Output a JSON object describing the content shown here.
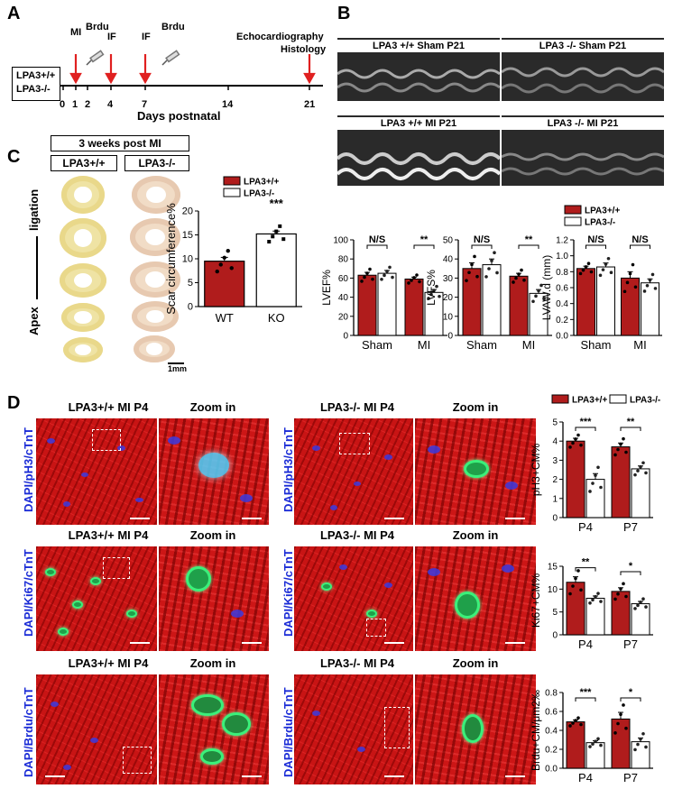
{
  "panels": {
    "a": {
      "label": "A",
      "genotype_lines": [
        "LPA3+/+",
        "LPA3-/-"
      ],
      "events": [
        "MI",
        "Brdu",
        "IF",
        "IF",
        "Brdu"
      ],
      "endpoint_lines": [
        "Echocardiography",
        "Histology"
      ],
      "ticks": [
        "0",
        "1",
        "2",
        "4",
        "7",
        "14",
        "21"
      ],
      "axis_label": "Days postnatal"
    },
    "b": {
      "label": "B",
      "echo_titles": [
        "LPA3 +/+  Sham  P21",
        "LPA3 -/-  Sham  P21",
        "LPA3 +/+  MI  P21",
        "LPA3 -/-  MI  P21"
      ]
    },
    "c": {
      "label": "C",
      "header": "3 weeks post MI",
      "col_wt": "LPA3+/+",
      "col_ko": "LPA3-/-",
      "side_top": "ligation",
      "side_bottom": "Apex",
      "scale": "1mm"
    },
    "d": {
      "label": "D",
      "rows": [
        {
          "wt_title": "LPA3+/+  MI  P4",
          "ko_title": "LPA3-/-  MI  P4",
          "zoom": "Zoom in",
          "stain": "DAPI/pH3/cTnT"
        },
        {
          "wt_title": "LPA3+/+  MI  P4",
          "ko_title": "LPA3-/-  MI  P4",
          "zoom": "Zoom in",
          "stain": "DAPI/Ki67/cTnT"
        },
        {
          "wt_title": "LPA3+/+  MI  P4",
          "ko_title": "LPA3-/-  MI  P4",
          "zoom": "Zoom in",
          "stain": "DAPI/Brdu/cTnT"
        }
      ]
    }
  },
  "colors": {
    "wt": "#b01c1c",
    "ko": "#ffffff"
  },
  "chart_data": [
    {
      "id": "scar",
      "type": "bar",
      "categories": [
        "WT",
        "KO"
      ],
      "values": [
        9.5,
        15.2
      ],
      "errors": [
        0.8,
        0.6
      ],
      "ylabel": "Scar circumference%",
      "ylim": [
        0,
        20
      ],
      "yticks": [
        0,
        5,
        10,
        15,
        20
      ],
      "legend": [
        "LPA3+/+",
        "LPA3-/-"
      ],
      "significance": [
        "***"
      ]
    },
    {
      "id": "lvef",
      "type": "bar",
      "categories": [
        "Sham",
        "MI"
      ],
      "series": [
        {
          "name": "LPA3+/+",
          "values": [
            63,
            59
          ],
          "errors": [
            3,
            2
          ]
        },
        {
          "name": "LPA3-/-",
          "values": [
            65,
            45
          ],
          "errors": [
            3,
            3
          ]
        }
      ],
      "ylabel": "LVEF%",
      "ylim": [
        0,
        100
      ],
      "yticks": [
        0,
        20,
        40,
        60,
        80,
        100
      ],
      "significance": [
        "N/S",
        "**"
      ]
    },
    {
      "id": "lvfs",
      "type": "bar",
      "categories": [
        "Sham",
        "MI"
      ],
      "series": [
        {
          "name": "LPA3+/+",
          "values": [
            35,
            31
          ],
          "errors": [
            3,
            1.5
          ]
        },
        {
          "name": "LPA3-/-",
          "values": [
            37,
            22
          ],
          "errors": [
            3,
            2
          ]
        }
      ],
      "ylabel": "LVFS%",
      "ylim": [
        0,
        50
      ],
      "yticks": [
        0,
        10,
        20,
        30,
        40,
        50
      ],
      "significance": [
        "N/S",
        "**"
      ]
    },
    {
      "id": "lvaw",
      "type": "bar",
      "categories": [
        "Sham",
        "MI"
      ],
      "series": [
        {
          "name": "LPA3+/+",
          "values": [
            0.84,
            0.72
          ],
          "errors": [
            0.03,
            0.08
          ]
        },
        {
          "name": "LPA3-/-",
          "values": [
            0.86,
            0.66
          ],
          "errors": [
            0.05,
            0.05
          ]
        }
      ],
      "ylabel": "LVAW.d (mm)",
      "ylim": [
        0.0,
        1.2
      ],
      "yticks": [
        "0.0",
        "0.2",
        "0.4",
        "0.6",
        "0.8",
        "1.0",
        "1.2"
      ],
      "legend": [
        "LPA3+/+",
        "LPA3-/-"
      ],
      "significance": [
        "N/S",
        "N/S"
      ]
    },
    {
      "id": "ph3",
      "type": "bar",
      "categories": [
        "P4",
        "P7"
      ],
      "series": [
        {
          "name": "LPA3+/+",
          "values": [
            4.0,
            3.7
          ],
          "errors": [
            0.15,
            0.2
          ]
        },
        {
          "name": "LPA3-/-",
          "values": [
            2.0,
            2.55
          ],
          "errors": [
            0.3,
            0.15
          ]
        }
      ],
      "ylabel": "pH3+CM%",
      "ylim": [
        0,
        5
      ],
      "yticks": [
        0,
        1,
        2,
        3,
        4,
        5
      ],
      "legend": [
        "LPA3+/+",
        "LPA3-/-"
      ],
      "significance": [
        "***",
        "**"
      ]
    },
    {
      "id": "ki67",
      "type": "bar",
      "categories": [
        "P4",
        "P7"
      ],
      "series": [
        {
          "name": "LPA3+/+",
          "values": [
            11.5,
            9.5
          ],
          "errors": [
            1.2,
            0.8
          ]
        },
        {
          "name": "LPA3-/-",
          "values": [
            8.0,
            6.8
          ],
          "errors": [
            0.5,
            0.5
          ]
        }
      ],
      "ylabel": "Ki67+CM%",
      "ylim": [
        0,
        15
      ],
      "yticks": [
        0,
        5,
        10,
        15
      ],
      "significance": [
        "**",
        "*"
      ]
    },
    {
      "id": "brdu",
      "type": "bar",
      "categories": [
        "P4",
        "P7"
      ],
      "series": [
        {
          "name": "LPA3+/+",
          "values": [
            0.49,
            0.52
          ],
          "errors": [
            0.02,
            0.07
          ]
        },
        {
          "name": "LPA3-/-",
          "values": [
            0.27,
            0.28
          ],
          "errors": [
            0.02,
            0.04
          ]
        }
      ],
      "ylabel": "Brdu+CM/μm2‰",
      "ylim": [
        0.0,
        0.8
      ],
      "yticks": [
        "0.0",
        "0.2",
        "0.4",
        "0.6",
        "0.8"
      ],
      "significance": [
        "***",
        "*"
      ]
    }
  ]
}
